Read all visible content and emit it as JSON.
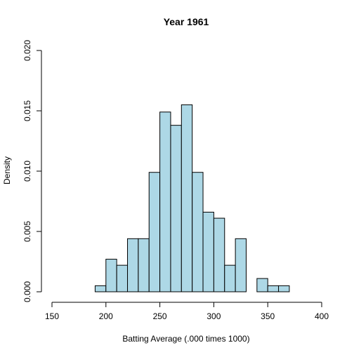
{
  "chart_data": {
    "type": "bar",
    "title": "Year 1961",
    "xlabel": "Batting Average (.000 times 1000)",
    "ylabel": "Density",
    "xlim": [
      150,
      400
    ],
    "ylim": [
      0,
      0.02
    ],
    "x_ticks": [
      "150",
      "200",
      "250",
      "300",
      "350",
      "400"
    ],
    "y_ticks": [
      "0.000",
      "0.005",
      "0.010",
      "0.015",
      "0.020"
    ],
    "bin_width": 10,
    "bins": [
      {
        "x0": 190,
        "x1": 200,
        "density": 0.0005
      },
      {
        "x0": 200,
        "x1": 210,
        "density": 0.0027
      },
      {
        "x0": 210,
        "x1": 220,
        "density": 0.0022
      },
      {
        "x0": 220,
        "x1": 230,
        "density": 0.0044
      },
      {
        "x0": 230,
        "x1": 240,
        "density": 0.0044
      },
      {
        "x0": 240,
        "x1": 250,
        "density": 0.0099
      },
      {
        "x0": 250,
        "x1": 260,
        "density": 0.0149
      },
      {
        "x0": 260,
        "x1": 270,
        "density": 0.0138
      },
      {
        "x0": 270,
        "x1": 280,
        "density": 0.0155
      },
      {
        "x0": 280,
        "x1": 290,
        "density": 0.0099
      },
      {
        "x0": 290,
        "x1": 300,
        "density": 0.0066
      },
      {
        "x0": 300,
        "x1": 310,
        "density": 0.0061
      },
      {
        "x0": 310,
        "x1": 320,
        "density": 0.0022
      },
      {
        "x0": 320,
        "x1": 330,
        "density": 0.0044
      },
      {
        "x0": 340,
        "x1": 350,
        "density": 0.0011
      },
      {
        "x0": 350,
        "x1": 360,
        "density": 0.0005
      },
      {
        "x0": 360,
        "x1": 370,
        "density": 0.0005
      }
    ],
    "colors": {
      "bar_fill": "#add8e6",
      "bar_stroke": "#000000",
      "axis": "#000000"
    }
  }
}
